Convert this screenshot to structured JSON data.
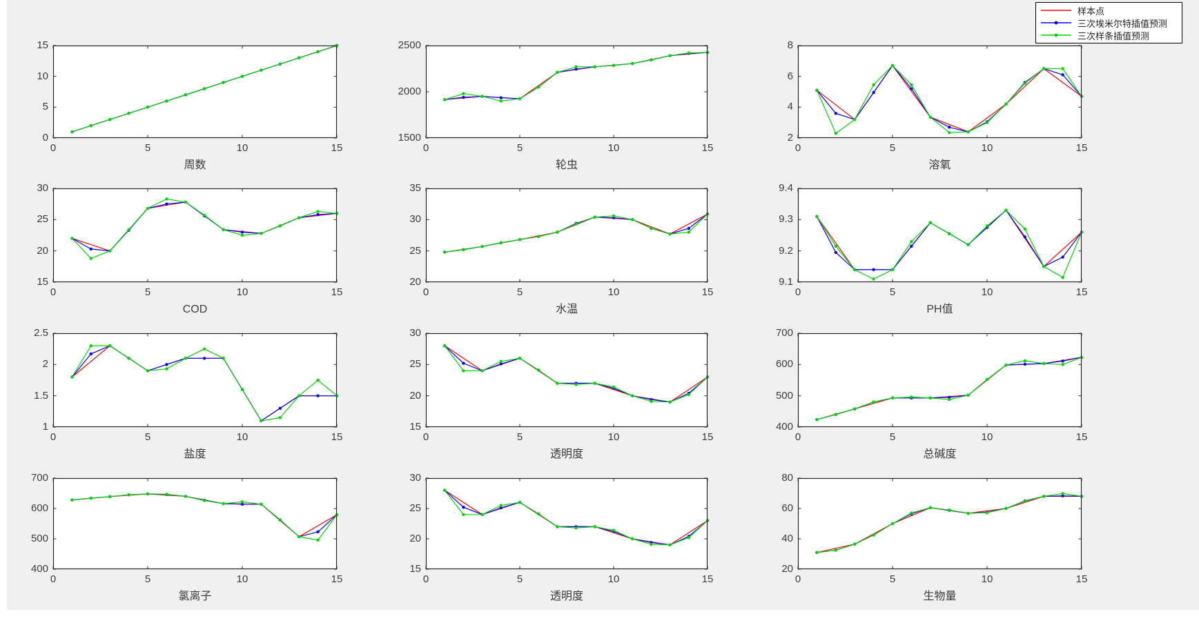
{
  "figure": {
    "background": "#f0f0f0"
  },
  "legend": {
    "items": [
      {
        "label": "样本点",
        "color": "#ff0000",
        "marker": false
      },
      {
        "label": "三次埃米尔特插值预测",
        "color": "#0000ff",
        "marker": true
      },
      {
        "label": "三次样条插值预测",
        "color": "#00d500",
        "marker": true
      }
    ]
  },
  "series_colors": {
    "sample": "#ff0000",
    "hermite": "#0000ff",
    "spline": "#00d500"
  },
  "chart_data": [
    {
      "type": "line",
      "xlabel": "周数",
      "xlim": [
        0,
        15
      ],
      "x_tick_labels": [
        "0",
        "5",
        "10",
        "15"
      ],
      "ylim": [
        0,
        15
      ],
      "y_tick_labels": [
        "0",
        "5",
        "10",
        "15"
      ],
      "sample_x": [
        1,
        3,
        5,
        7,
        9,
        11,
        13,
        15
      ],
      "series": [
        {
          "name": "样本点",
          "values": [
            1,
            3,
            5,
            7,
            9,
            11,
            13,
            15
          ]
        },
        {
          "name": "三次埃米尔特插值预测",
          "values": [
            1,
            2,
            3,
            4,
            5,
            6,
            7,
            8,
            9,
            10,
            11,
            12,
            13,
            14,
            15
          ]
        },
        {
          "name": "三次样条插值预测",
          "values": [
            1,
            2,
            3,
            4,
            5,
            6,
            7,
            8,
            9,
            10,
            11,
            12,
            13,
            14,
            15
          ]
        }
      ]
    },
    {
      "type": "line",
      "xlabel": "轮虫",
      "xlim": [
        0,
        15
      ],
      "x_tick_labels": [
        "0",
        "5",
        "10",
        "15"
      ],
      "ylim": [
        1500,
        2500
      ],
      "y_tick_labels": [
        "1500",
        "2000",
        "2500"
      ],
      "sample_x": [
        1,
        3,
        5,
        7,
        9,
        11,
        13,
        15
      ],
      "series": [
        {
          "name": "样本点",
          "values": [
            1915,
            1950,
            1925,
            2210,
            2270,
            2305,
            2390,
            2425
          ]
        },
        {
          "name": "三次埃米尔特插值预测",
          "values": [
            1915,
            1940,
            1950,
            1935,
            1925,
            2050,
            2210,
            2245,
            2270,
            2285,
            2305,
            2345,
            2390,
            2415,
            2425
          ]
        },
        {
          "name": "三次样条插值预测",
          "values": [
            1915,
            1980,
            1950,
            1900,
            1925,
            2050,
            2210,
            2270,
            2270,
            2285,
            2305,
            2345,
            2390,
            2420,
            2425
          ]
        }
      ]
    },
    {
      "type": "line",
      "xlabel": "溶氧",
      "xlim": [
        0,
        15
      ],
      "x_tick_labels": [
        "0",
        "5",
        "10",
        "15"
      ],
      "ylim": [
        2,
        8
      ],
      "y_tick_labels": [
        "2",
        "4",
        "6",
        "8"
      ],
      "sample_x": [
        1,
        3,
        5,
        7,
        9,
        11,
        13,
        15
      ],
      "series": [
        {
          "name": "样本点",
          "values": [
            5.1,
            3.2,
            6.7,
            3.35,
            2.4,
            4.2,
            6.5,
            4.7
          ]
        },
        {
          "name": "三次埃米尔特插值预测",
          "values": [
            5.1,
            3.6,
            3.2,
            4.95,
            6.7,
            5.2,
            3.35,
            2.7,
            2.4,
            3.05,
            4.2,
            5.6,
            6.5,
            6.1,
            4.7
          ]
        },
        {
          "name": "三次样条插值预测",
          "values": [
            5.1,
            2.3,
            3.2,
            5.45,
            6.7,
            5.45,
            3.35,
            2.35,
            2.4,
            3.0,
            4.2,
            5.55,
            6.5,
            6.5,
            4.7
          ]
        }
      ]
    },
    {
      "type": "line",
      "xlabel": "COD",
      "xlim": [
        0,
        15
      ],
      "x_tick_labels": [
        "0",
        "5",
        "10",
        "15"
      ],
      "ylim": [
        15,
        30
      ],
      "y_tick_labels": [
        "15",
        "20",
        "25",
        "30"
      ],
      "sample_x": [
        1,
        3,
        5,
        7,
        9,
        11,
        13,
        15
      ],
      "series": [
        {
          "name": "样本点",
          "values": [
            22,
            20,
            26.8,
            27.8,
            23.4,
            22.8,
            25.3,
            26
          ]
        },
        {
          "name": "三次埃米尔特插值预测",
          "values": [
            22,
            20.3,
            20,
            23.3,
            26.8,
            27.5,
            27.8,
            25.6,
            23.4,
            23.0,
            22.8,
            24.0,
            25.3,
            25.8,
            26
          ]
        },
        {
          "name": "三次样条插值预测",
          "values": [
            22,
            18.8,
            20,
            23.4,
            26.8,
            28.3,
            27.8,
            25.7,
            23.4,
            22.5,
            22.8,
            24.0,
            25.3,
            26.3,
            26
          ]
        }
      ]
    },
    {
      "type": "line",
      "xlabel": "水温",
      "xlim": [
        0,
        15
      ],
      "x_tick_labels": [
        "0",
        "5",
        "10",
        "15"
      ],
      "ylim": [
        20,
        35
      ],
      "y_tick_labels": [
        "20",
        "25",
        "30",
        "35"
      ],
      "sample_x": [
        1,
        3,
        5,
        7,
        9,
        11,
        13,
        15
      ],
      "series": [
        {
          "name": "样本点",
          "values": [
            24.8,
            25.7,
            26.8,
            28.0,
            30.4,
            30.0,
            27.7,
            30.9
          ]
        },
        {
          "name": "三次埃米尔特插值预测",
          "values": [
            24.8,
            25.2,
            25.7,
            26.3,
            26.8,
            27.3,
            28.0,
            29.4,
            30.4,
            30.3,
            30.0,
            28.6,
            27.7,
            28.6,
            30.9
          ]
        },
        {
          "name": "三次样条插值预测",
          "values": [
            24.8,
            25.2,
            25.7,
            26.3,
            26.8,
            27.3,
            28.0,
            29.3,
            30.4,
            30.6,
            30.0,
            28.6,
            27.7,
            28.0,
            30.9
          ]
        }
      ]
    },
    {
      "type": "line",
      "xlabel": "PH值",
      "xlim": [
        0,
        15
      ],
      "x_tick_labels": [
        "0",
        "5",
        "10",
        "15"
      ],
      "ylim": [
        9.1,
        9.4
      ],
      "y_tick_labels": [
        "9.1",
        "9.2",
        "9.3",
        "9.4"
      ],
      "sample_x": [
        1,
        3,
        5,
        7,
        9,
        11,
        13,
        15
      ],
      "series": [
        {
          "name": "样本点",
          "values": [
            9.31,
            9.14,
            9.14,
            9.29,
            9.22,
            9.33,
            9.15,
            9.26
          ]
        },
        {
          "name": "三次埃米尔特插值预测",
          "values": [
            9.31,
            9.195,
            9.14,
            9.14,
            9.14,
            9.215,
            9.29,
            9.255,
            9.22,
            9.275,
            9.33,
            9.245,
            9.15,
            9.18,
            9.26
          ]
        },
        {
          "name": "三次样条插值预测",
          "values": [
            9.31,
            9.215,
            9.14,
            9.11,
            9.14,
            9.23,
            9.29,
            9.255,
            9.22,
            9.28,
            9.33,
            9.27,
            9.15,
            9.115,
            9.26
          ]
        }
      ]
    },
    {
      "type": "line",
      "xlabel": "盐度",
      "xlim": [
        0,
        15
      ],
      "x_tick_labels": [
        "0",
        "5",
        "10",
        "15"
      ],
      "ylim": [
        1,
        2.5
      ],
      "y_tick_labels": [
        "1",
        "1.5",
        "2",
        "2.5"
      ],
      "sample_x": [
        1,
        3,
        5,
        7,
        9,
        11,
        13,
        15
      ],
      "series": [
        {
          "name": "样本点",
          "values": [
            1.8,
            2.3,
            1.9,
            2.1,
            2.1,
            1.1,
            1.5,
            1.5
          ]
        },
        {
          "name": "三次埃米尔特插值预测",
          "values": [
            1.8,
            2.17,
            2.3,
            2.1,
            1.9,
            2.0,
            2.1,
            2.1,
            2.1,
            1.6,
            1.1,
            1.3,
            1.5,
            1.5,
            1.5
          ]
        },
        {
          "name": "三次样条插值预测",
          "values": [
            1.8,
            2.3,
            2.3,
            2.1,
            1.9,
            1.93,
            2.1,
            2.25,
            2.1,
            1.6,
            1.1,
            1.15,
            1.5,
            1.75,
            1.5
          ]
        }
      ]
    },
    {
      "type": "line",
      "xlabel": "透明度",
      "xlim": [
        0,
        15
      ],
      "x_tick_labels": [
        "0",
        "5",
        "10",
        "15"
      ],
      "ylim": [
        15,
        30
      ],
      "y_tick_labels": [
        "15",
        "20",
        "25",
        "30"
      ],
      "sample_x": [
        1,
        3,
        5,
        7,
        9,
        11,
        13,
        15
      ],
      "series": [
        {
          "name": "样本点",
          "values": [
            28,
            24,
            26,
            22,
            22,
            20,
            19,
            23
          ]
        },
        {
          "name": "三次埃米尔特插值预测",
          "values": [
            28,
            25.2,
            24,
            25.1,
            26,
            24.1,
            22,
            22,
            22,
            21.2,
            20,
            19.4,
            19,
            20.4,
            23
          ]
        },
        {
          "name": "三次样条插值预测",
          "values": [
            28,
            24,
            24,
            25.5,
            26,
            24.1,
            22,
            21.8,
            22,
            21.4,
            20,
            19.1,
            19,
            20.2,
            23
          ]
        }
      ]
    },
    {
      "type": "line",
      "xlabel": "总碱度",
      "xlim": [
        0,
        15
      ],
      "x_tick_labels": [
        "0",
        "5",
        "10",
        "15"
      ],
      "ylim": [
        400,
        700
      ],
      "y_tick_labels": [
        "400",
        "500",
        "600",
        "700"
      ],
      "sample_x": [
        1,
        3,
        5,
        7,
        9,
        11,
        13,
        15
      ],
      "series": [
        {
          "name": "样本点",
          "values": [
            424,
            458,
            493,
            493,
            502,
            598,
            603,
            623
          ]
        },
        {
          "name": "三次埃米尔特插值预测",
          "values": [
            424,
            440,
            458,
            480,
            493,
            493,
            493,
            495,
            502,
            552,
            598,
            601,
            603,
            611,
            623
          ]
        },
        {
          "name": "三次样条插值预测",
          "values": [
            424,
            440,
            458,
            480,
            493,
            496,
            493,
            488,
            502,
            552,
            598,
            612,
            603,
            600,
            623
          ]
        }
      ]
    },
    {
      "type": "line",
      "xlabel": "氯离子",
      "xlim": [
        0,
        15
      ],
      "x_tick_labels": [
        "0",
        "5",
        "10",
        "15"
      ],
      "ylim": [
        400,
        700
      ],
      "y_tick_labels": [
        "400",
        "500",
        "600",
        "700"
      ],
      "sample_x": [
        1,
        3,
        5,
        7,
        9,
        11,
        13,
        15
      ],
      "series": [
        {
          "name": "样本点",
          "values": [
            628,
            639,
            648,
            640,
            616,
            614,
            507,
            579
          ]
        },
        {
          "name": "三次埃米尔特插值预测",
          "values": [
            628,
            634,
            639,
            645,
            648,
            646,
            640,
            627,
            616,
            614,
            614,
            562,
            507,
            523,
            579
          ]
        },
        {
          "name": "三次样条插值预测",
          "values": [
            628,
            634,
            639,
            645,
            648,
            647,
            640,
            626,
            616,
            622,
            614,
            563,
            507,
            496,
            579
          ]
        }
      ]
    },
    {
      "type": "line",
      "xlabel": "透明度",
      "xlim": [
        0,
        15
      ],
      "x_tick_labels": [
        "0",
        "5",
        "10",
        "15"
      ],
      "ylim": [
        15,
        30
      ],
      "y_tick_labels": [
        "15",
        "20",
        "25",
        "30"
      ],
      "sample_x": [
        1,
        3,
        5,
        7,
        9,
        11,
        13,
        15
      ],
      "series": [
        {
          "name": "样本点",
          "values": [
            28,
            24,
            26,
            22,
            22,
            20,
            19,
            23
          ]
        },
        {
          "name": "三次埃米尔特插值预测",
          "values": [
            28,
            25.2,
            24,
            25.1,
            26,
            24.1,
            22,
            22,
            22,
            21.2,
            20,
            19.4,
            19,
            20.4,
            23
          ]
        },
        {
          "name": "三次样条插值预测",
          "values": [
            28,
            24,
            24,
            25.5,
            26,
            24.1,
            22,
            21.8,
            22,
            21.4,
            20,
            19.1,
            19,
            20.2,
            23
          ]
        }
      ]
    },
    {
      "type": "line",
      "xlabel": "生物量",
      "xlim": [
        0,
        15
      ],
      "x_tick_labels": [
        "0",
        "5",
        "10",
        "15"
      ],
      "ylim": [
        20,
        80
      ],
      "y_tick_labels": [
        "20",
        "40",
        "60",
        "80"
      ],
      "sample_x": [
        1,
        3,
        5,
        7,
        9,
        11,
        13,
        15
      ],
      "series": [
        {
          "name": "样本点",
          "values": [
            31,
            36.5,
            50,
            60.5,
            56.8,
            60,
            68,
            68
          ]
        },
        {
          "name": "三次埃米尔特插值预测",
          "values": [
            31,
            32.5,
            36.5,
            42.5,
            50,
            56.5,
            60.5,
            58.8,
            56.8,
            57.5,
            60,
            65,
            68,
            68.3,
            68
          ]
        },
        {
          "name": "三次样条插值预测",
          "values": [
            31,
            32.5,
            36.5,
            42.5,
            50,
            57,
            60.5,
            59,
            56.8,
            57.2,
            60,
            64.8,
            68,
            69.8,
            68
          ]
        }
      ]
    }
  ]
}
